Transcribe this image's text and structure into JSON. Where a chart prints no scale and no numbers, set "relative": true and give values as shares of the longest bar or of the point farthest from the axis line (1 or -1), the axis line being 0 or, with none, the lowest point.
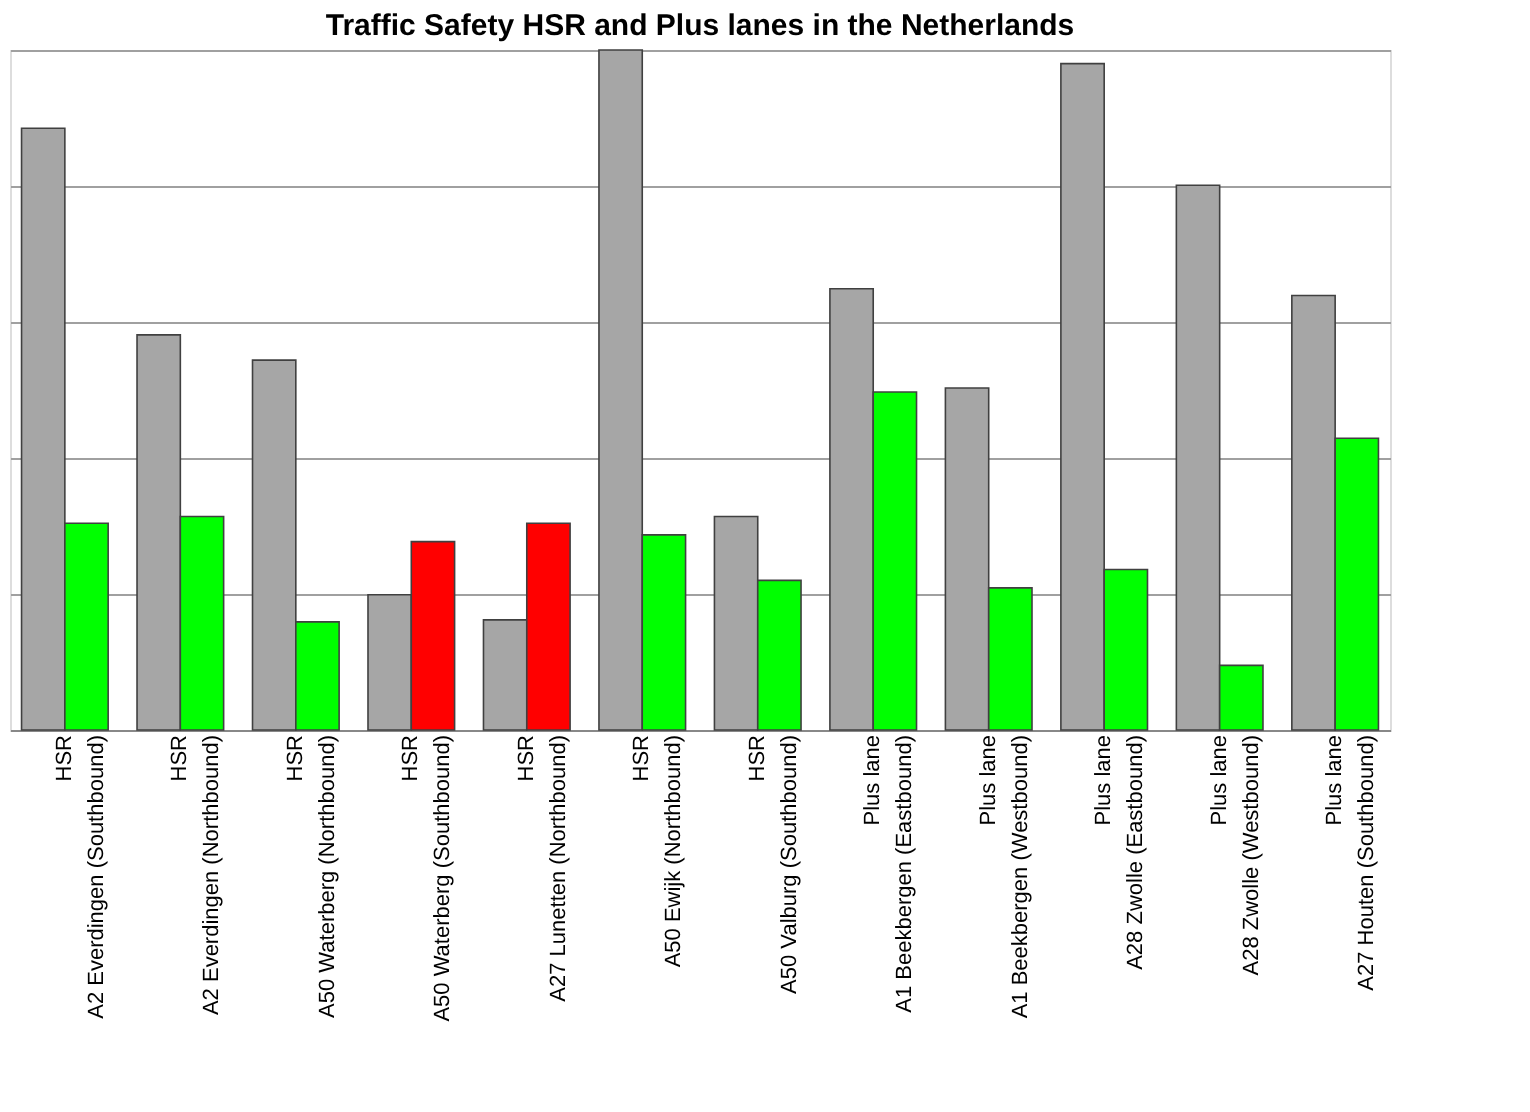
{
  "chart_data": {
    "type": "bar",
    "title": "Traffic Safety  HSR and Plus lanes in the Netherlands",
    "relative": true,
    "grid": "y",
    "categories": [
      "HSR\nA2 Everdingen (Southbound)",
      "HSR\nA2 Everdingen (Northbound)",
      "HSR\nA50 Waterberg (Northbound)",
      "HSR\nA50 Waterberg (Southbound)",
      "HSR\nA27 Lunetten (Northbound)",
      "HSR\nA50 Ewijk (Northbound)",
      "HSR\nA50 Valburg (Southbound)",
      "Plus lane\nA1 Beekbergen (Eastbound)",
      "Plus lane\nA1 Beekbergen (Westbound)",
      "Plus lane\nA28 Zwolle (Eastbound)",
      "Plus lane\nA28 Zwolle (Westbound)",
      "Plus lane\nA27 Houten (Southbound)"
    ],
    "series": [
      {
        "color": "#a6a6a6",
        "values": [
          0.885,
          0.581,
          0.544,
          0.199,
          0.162,
          1,
          0.314,
          0.649,
          0.503,
          0.98,
          0.801,
          0.639
        ]
      },
      {
        "colors": [
          "#00ff00",
          "#00ff00",
          "#00ff00",
          "#ff0000",
          "#ff0000",
          "#00ff00",
          "#00ff00",
          "#00ff00",
          "#00ff00",
          "#00ff00",
          "#00ff00",
          "#00ff00"
        ],
        "values": [
          0.304,
          0.314,
          0.159,
          0.277,
          0.304,
          0.287,
          0.22,
          0.497,
          0.209,
          0.236,
          0.095,
          0.429
        ]
      }
    ]
  }
}
